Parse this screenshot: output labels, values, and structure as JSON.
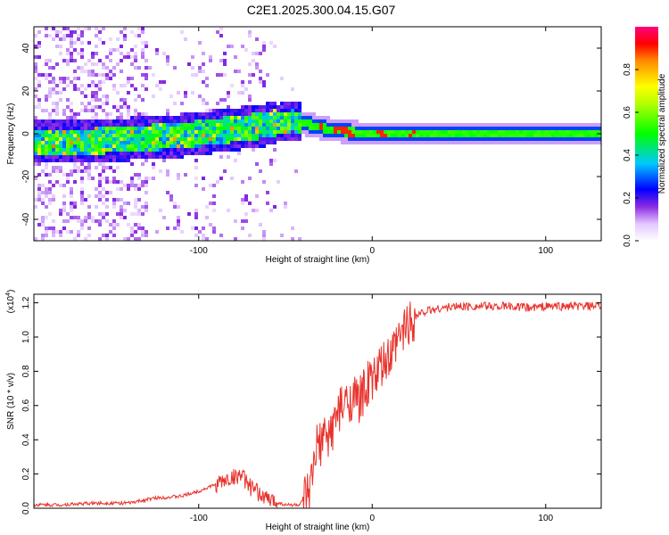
{
  "title": "C2E1.2025.300.04.15.G07",
  "colorbar": {
    "label": "Normalized spectral amplitude",
    "ticks": [
      "0.0",
      "0.2",
      "0.4",
      "0.6",
      "0.8"
    ],
    "tick_values": [
      0.0,
      0.2,
      0.4,
      0.6,
      0.8
    ],
    "range": [
      0,
      1
    ]
  },
  "chart_data": [
    {
      "type": "heatmap",
      "name": "spectrogram",
      "xlabel": "Height of straight line (km)",
      "ylabel": "Frequency (Hz)",
      "xlim": [
        -195,
        132
      ],
      "ylim": [
        -50,
        50
      ],
      "xticks": [
        -100,
        0,
        100
      ],
      "xtick_labels": [
        "-100",
        "0",
        "100"
      ],
      "yticks": [
        -40,
        -20,
        0,
        20,
        40
      ],
      "ytick_labels": [
        "-40",
        "-20",
        "0",
        "20",
        "40"
      ],
      "ridge": {
        "x": [
          -195,
          -170,
          -150,
          -130,
          -110,
          -90,
          -70,
          -55,
          -45,
          -35,
          -25,
          -15,
          -5,
          5,
          15,
          30,
          60,
          90,
          132
        ],
        "y": [
          -4,
          -4,
          -3,
          -2,
          -1,
          1,
          3,
          5,
          6,
          4,
          2,
          1,
          0,
          0,
          0,
          0,
          0,
          0,
          0
        ]
      },
      "colormap_value_range": [
        0,
        1
      ]
    },
    {
      "type": "line",
      "name": "snr",
      "xlabel": "Height of straight line (km)",
      "ylabel": "SNR (10 * v/v)",
      "yscale_label": "(x10",
      "yscale_exponent": "4",
      "xlim": [
        -195,
        132
      ],
      "ylim": [
        0,
        1.25
      ],
      "xticks": [
        -100,
        0,
        100
      ],
      "xtick_labels": [
        "-100",
        "0",
        "100"
      ],
      "yticks": [
        0,
        0.2,
        0.4,
        0.6,
        0.8,
        1.0,
        1.2
      ],
      "ytick_labels": [
        "0.0",
        "0.2",
        "0.4",
        "0.6",
        "0.8",
        "1.0",
        "1.2"
      ],
      "color": "#e8322c",
      "series": [
        {
          "name": "SNR",
          "x": [
            -195,
            -180,
            -160,
            -140,
            -125,
            -110,
            -100,
            -90,
            -80,
            -76,
            -70,
            -60,
            -50,
            -42,
            -36,
            -32,
            -28,
            -25,
            -20,
            -16,
            -12,
            -8,
            -4,
            0,
            4,
            8,
            12,
            16,
            20,
            25,
            30,
            40,
            50,
            60,
            80,
            90,
            100,
            110,
            120,
            132
          ],
          "y": [
            0.02,
            0.02,
            0.03,
            0.03,
            0.06,
            0.07,
            0.1,
            0.14,
            0.18,
            0.2,
            0.12,
            0.05,
            0.02,
            0.02,
            0.08,
            0.35,
            0.4,
            0.42,
            0.55,
            0.6,
            0.65,
            0.62,
            0.7,
            0.75,
            0.8,
            0.85,
            0.9,
            1.0,
            1.08,
            1.12,
            1.15,
            1.17,
            1.18,
            1.18,
            1.18,
            1.17,
            1.18,
            1.18,
            1.18,
            1.18
          ]
        }
      ]
    }
  ]
}
